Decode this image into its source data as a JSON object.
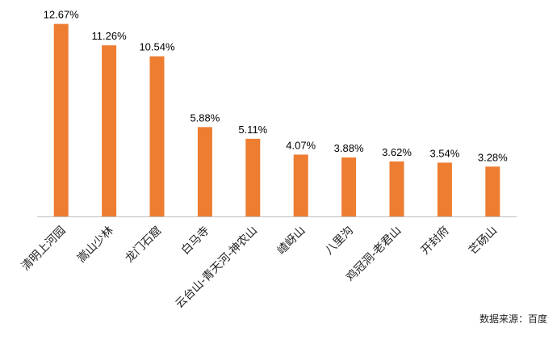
{
  "chart_data": {
    "type": "bar",
    "categories": [
      "清明上河园",
      "嵩山少林",
      "龙门石窟",
      "白马寺",
      "云台山-青天河-神农山",
      "嵖岈山",
      "八里沟",
      "鸡冠洞-老君山",
      "开封府",
      "芒砀山"
    ],
    "values": [
      12.67,
      11.26,
      10.54,
      5.88,
      5.11,
      4.07,
      3.88,
      3.62,
      3.54,
      3.28
    ],
    "value_labels": [
      "12.67%",
      "11.26%",
      "10.54%",
      "5.88%",
      "5.11%",
      "4.07%",
      "3.88%",
      "3.62%",
      "3.54%",
      "3.28%"
    ],
    "unit": "%",
    "ylim": [
      0,
      13.5
    ],
    "grid": false,
    "legend": "none",
    "bar_color": "#ED7D31",
    "axis_color": "#bfbfbf"
  },
  "source_note": "数据来源：百度"
}
